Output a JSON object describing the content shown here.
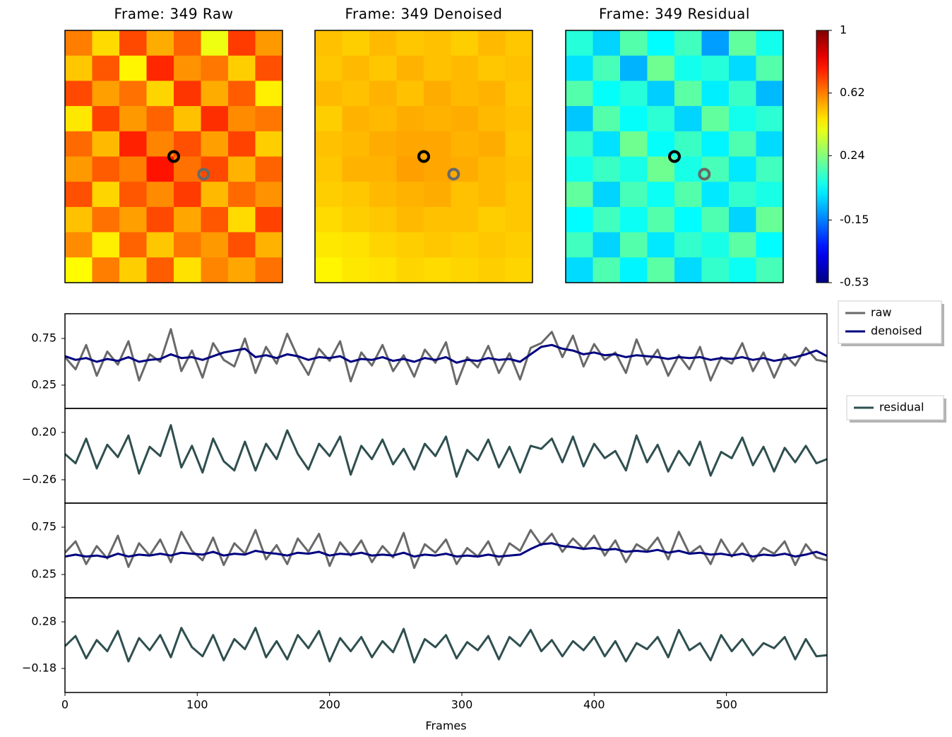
{
  "chart_data": [
    {
      "type": "heatmap",
      "title": "Frame: 349 Raw",
      "cmap": "jet",
      "zlim": [
        -0.53,
        1
      ],
      "z": [
        [
          0.62,
          0.48,
          0.7,
          0.55,
          0.66,
          0.4,
          0.72,
          0.58
        ],
        [
          0.51,
          0.68,
          0.44,
          0.75,
          0.59,
          0.63,
          0.5,
          0.69
        ],
        [
          0.7,
          0.57,
          0.64,
          0.49,
          0.73,
          0.55,
          0.67,
          0.45
        ],
        [
          0.46,
          0.71,
          0.58,
          0.66,
          0.52,
          0.74,
          0.6,
          0.63
        ],
        [
          0.65,
          0.53,
          0.76,
          0.61,
          0.69,
          0.57,
          0.71,
          0.5
        ],
        [
          0.58,
          0.67,
          0.62,
          0.78,
          0.64,
          0.7,
          0.54,
          0.66
        ],
        [
          0.69,
          0.49,
          0.68,
          0.6,
          0.72,
          0.53,
          0.65,
          0.59
        ],
        [
          0.52,
          0.64,
          0.57,
          0.7,
          0.56,
          0.68,
          0.48,
          0.71
        ],
        [
          0.6,
          0.45,
          0.66,
          0.51,
          0.63,
          0.58,
          0.69,
          0.54
        ],
        [
          0.43,
          0.62,
          0.5,
          0.67,
          0.47,
          0.61,
          0.56,
          0.64
        ]
      ],
      "markers": [
        {
          "x": 4.0,
          "y": 5.0,
          "color": "#000000"
        },
        {
          "x": 5.1,
          "y": 5.7,
          "color": "#696969"
        }
      ]
    },
    {
      "type": "heatmap",
      "title": "Frame: 349 Denoised",
      "cmap": "jet",
      "zlim": [
        -0.53,
        1
      ],
      "z": [
        [
          0.52,
          0.5,
          0.53,
          0.51,
          0.52,
          0.5,
          0.53,
          0.51
        ],
        [
          0.51,
          0.53,
          0.51,
          0.54,
          0.52,
          0.53,
          0.51,
          0.52
        ],
        [
          0.53,
          0.52,
          0.54,
          0.52,
          0.55,
          0.53,
          0.54,
          0.51
        ],
        [
          0.5,
          0.54,
          0.53,
          0.55,
          0.54,
          0.55,
          0.53,
          0.52
        ],
        [
          0.52,
          0.53,
          0.55,
          0.56,
          0.56,
          0.54,
          0.55,
          0.51
        ],
        [
          0.51,
          0.54,
          0.54,
          0.57,
          0.56,
          0.55,
          0.53,
          0.52
        ],
        [
          0.5,
          0.51,
          0.53,
          0.54,
          0.55,
          0.52,
          0.53,
          0.51
        ],
        [
          0.48,
          0.5,
          0.51,
          0.53,
          0.52,
          0.52,
          0.5,
          0.51
        ],
        [
          0.46,
          0.47,
          0.49,
          0.5,
          0.51,
          0.5,
          0.51,
          0.5
        ],
        [
          0.44,
          0.46,
          0.47,
          0.49,
          0.48,
          0.49,
          0.5,
          0.49
        ]
      ],
      "markers": [
        {
          "x": 4.0,
          "y": 5.0,
          "color": "#000000"
        },
        {
          "x": 5.1,
          "y": 5.7,
          "color": "#696969"
        }
      ]
    },
    {
      "type": "heatmap",
      "title": "Frame: 349 Residual",
      "cmap": "jet",
      "zlim": [
        -0.53,
        1
      ],
      "z": [
        [
          0.1,
          -0.02,
          0.17,
          0.04,
          0.14,
          -0.1,
          0.19,
          0.07
        ],
        [
          0.0,
          0.15,
          -0.07,
          0.21,
          0.07,
          0.1,
          -0.01,
          0.17
        ],
        [
          0.17,
          0.05,
          0.1,
          -0.03,
          0.18,
          0.02,
          0.13,
          -0.06
        ],
        [
          -0.04,
          0.17,
          0.05,
          0.11,
          -0.02,
          0.19,
          0.07,
          0.11
        ],
        [
          0.13,
          0.0,
          0.21,
          0.05,
          0.13,
          0.03,
          0.16,
          -0.01
        ],
        [
          0.07,
          0.13,
          0.08,
          0.21,
          0.08,
          0.15,
          0.01,
          0.14
        ],
        [
          0.19,
          -0.02,
          0.15,
          0.06,
          0.17,
          0.01,
          0.12,
          0.08
        ],
        [
          0.04,
          0.14,
          0.06,
          0.17,
          0.04,
          0.16,
          -0.02,
          0.2
        ],
        [
          0.14,
          -0.02,
          0.17,
          0.01,
          0.12,
          0.08,
          0.18,
          0.04
        ],
        [
          -0.01,
          0.16,
          0.03,
          0.18,
          -0.01,
          0.12,
          0.06,
          0.15
        ]
      ],
      "markers": [
        {
          "x": 4.0,
          "y": 5.0,
          "color": "#000000"
        },
        {
          "x": 5.1,
          "y": 5.7,
          "color": "#696969"
        }
      ]
    },
    {
      "type": "colorbar",
      "cmap": "jet",
      "zlim": [
        -0.53,
        1
      ],
      "ticks": [
        1,
        0.62,
        0.24,
        -0.15,
        -0.53
      ]
    },
    {
      "type": "line",
      "xlim": [
        0,
        576
      ],
      "ylim": [
        0,
        1.015
      ],
      "yticks": [
        0.25,
        0.75
      ],
      "legend": "right",
      "x": [
        0,
        8,
        16,
        24,
        32,
        40,
        48,
        56,
        64,
        72,
        80,
        88,
        96,
        104,
        112,
        120,
        128,
        136,
        144,
        152,
        160,
        168,
        176,
        184,
        192,
        200,
        208,
        216,
        224,
        232,
        240,
        248,
        256,
        264,
        272,
        280,
        288,
        296,
        304,
        312,
        320,
        328,
        336,
        344,
        352,
        360,
        368,
        376,
        384,
        392,
        400,
        408,
        416,
        424,
        432,
        440,
        448,
        456,
        464,
        472,
        480,
        488,
        496,
        504,
        512,
        520,
        528,
        536,
        544,
        552,
        560,
        568,
        576
      ],
      "series": [
        {
          "name": "raw",
          "color": "#696969",
          "values": [
            0.55,
            0.42,
            0.68,
            0.35,
            0.61,
            0.47,
            0.72,
            0.3,
            0.58,
            0.5,
            0.85,
            0.4,
            0.62,
            0.33,
            0.7,
            0.52,
            0.45,
            0.75,
            0.38,
            0.66,
            0.48,
            0.8,
            0.55,
            0.36,
            0.64,
            0.51,
            0.72,
            0.29,
            0.6,
            0.46,
            0.68,
            0.4,
            0.57,
            0.34,
            0.63,
            0.49,
            0.71,
            0.26,
            0.55,
            0.44,
            0.67,
            0.38,
            0.59,
            0.31,
            0.65,
            0.7,
            0.82,
            0.55,
            0.78,
            0.45,
            0.69,
            0.52,
            0.6,
            0.38,
            0.74,
            0.47,
            0.63,
            0.35,
            0.57,
            0.42,
            0.66,
            0.3,
            0.55,
            0.48,
            0.7,
            0.4,
            0.6,
            0.33,
            0.58,
            0.46,
            0.65,
            0.52,
            0.5
          ]
        },
        {
          "name": "denoised",
          "color": "#000080",
          "values": [
            0.56,
            0.52,
            0.54,
            0.5,
            0.53,
            0.51,
            0.55,
            0.5,
            0.52,
            0.53,
            0.58,
            0.54,
            0.55,
            0.52,
            0.56,
            0.6,
            0.62,
            0.64,
            0.55,
            0.57,
            0.54,
            0.58,
            0.56,
            0.52,
            0.55,
            0.54,
            0.56,
            0.5,
            0.53,
            0.52,
            0.55,
            0.51,
            0.53,
            0.5,
            0.54,
            0.52,
            0.55,
            0.49,
            0.52,
            0.51,
            0.54,
            0.52,
            0.53,
            0.5,
            0.58,
            0.66,
            0.68,
            0.64,
            0.62,
            0.58,
            0.6,
            0.57,
            0.58,
            0.55,
            0.57,
            0.56,
            0.55,
            0.53,
            0.55,
            0.54,
            0.55,
            0.52,
            0.54,
            0.53,
            0.55,
            0.52,
            0.54,
            0.51,
            0.53,
            0.55,
            0.58,
            0.62,
            0.56
          ]
        }
      ]
    },
    {
      "type": "line",
      "xlim": [
        0,
        576
      ],
      "ylim": [
        -0.487,
        0.433
      ],
      "yticks": [
        {
          "value": 0.2,
          "label": "0.20"
        },
        {
          "value": -0.26,
          "label": "−0.26"
        }
      ],
      "legend": "right",
      "x": [
        0,
        8,
        16,
        24,
        32,
        40,
        48,
        56,
        64,
        72,
        80,
        88,
        96,
        104,
        112,
        120,
        128,
        136,
        144,
        152,
        160,
        168,
        176,
        184,
        192,
        200,
        208,
        216,
        224,
        232,
        240,
        248,
        256,
        264,
        272,
        280,
        288,
        296,
        304,
        312,
        320,
        328,
        336,
        344,
        352,
        360,
        368,
        376,
        384,
        392,
        400,
        408,
        416,
        424,
        432,
        440,
        448,
        456,
        464,
        472,
        480,
        488,
        496,
        504,
        512,
        520,
        528,
        536,
        544,
        552,
        560,
        568,
        576
      ],
      "series": [
        {
          "name": "residual",
          "color": "#2f4f4f",
          "values": [
            -0.01,
            -0.1,
            0.14,
            -0.15,
            0.08,
            -0.04,
            0.17,
            -0.2,
            0.06,
            -0.03,
            0.27,
            -0.14,
            0.07,
            -0.19,
            0.14,
            -0.08,
            -0.17,
            0.11,
            -0.17,
            0.09,
            -0.06,
            0.22,
            -0.01,
            -0.16,
            0.09,
            -0.03,
            0.16,
            -0.21,
            0.07,
            -0.06,
            0.13,
            -0.11,
            0.04,
            -0.16,
            0.09,
            -0.03,
            0.16,
            -0.23,
            0.03,
            -0.07,
            0.13,
            -0.14,
            0.06,
            -0.19,
            0.07,
            0.04,
            0.14,
            -0.09,
            0.16,
            -0.13,
            0.09,
            -0.05,
            0.02,
            -0.17,
            0.17,
            -0.09,
            0.08,
            -0.18,
            0.02,
            -0.12,
            0.11,
            -0.22,
            0.01,
            -0.05,
            0.15,
            -0.12,
            0.06,
            -0.18,
            0.05,
            -0.09,
            0.07,
            -0.1,
            -0.06
          ]
        }
      ]
    },
    {
      "type": "line",
      "xlim": [
        0,
        576
      ],
      "ylim": [
        0.004,
        1.004
      ],
      "yticks": [
        0.25,
        0.75
      ],
      "x": [
        0,
        8,
        16,
        24,
        32,
        40,
        48,
        56,
        64,
        72,
        80,
        88,
        96,
        104,
        112,
        120,
        128,
        136,
        144,
        152,
        160,
        168,
        176,
        184,
        192,
        200,
        208,
        216,
        224,
        232,
        240,
        248,
        256,
        264,
        272,
        280,
        288,
        296,
        304,
        312,
        320,
        328,
        336,
        344,
        352,
        360,
        368,
        376,
        384,
        392,
        400,
        408,
        416,
        424,
        432,
        440,
        448,
        456,
        464,
        472,
        480,
        488,
        496,
        504,
        512,
        520,
        528,
        536,
        544,
        552,
        560,
        568,
        576
      ],
      "series": [
        {
          "color": "#696969",
          "values": [
            0.48,
            0.6,
            0.36,
            0.55,
            0.42,
            0.66,
            0.33,
            0.58,
            0.45,
            0.62,
            0.38,
            0.7,
            0.5,
            0.4,
            0.64,
            0.35,
            0.58,
            0.47,
            0.72,
            0.41,
            0.56,
            0.36,
            0.63,
            0.49,
            0.68,
            0.34,
            0.59,
            0.45,
            0.61,
            0.38,
            0.55,
            0.43,
            0.69,
            0.32,
            0.57,
            0.48,
            0.62,
            0.36,
            0.53,
            0.44,
            0.6,
            0.35,
            0.58,
            0.5,
            0.72,
            0.56,
            0.68,
            0.49,
            0.63,
            0.52,
            0.66,
            0.45,
            0.61,
            0.38,
            0.57,
            0.5,
            0.64,
            0.41,
            0.7,
            0.47,
            0.55,
            0.36,
            0.62,
            0.44,
            0.58,
            0.39,
            0.53,
            0.47,
            0.6,
            0.35,
            0.57,
            0.43,
            0.4
          ]
        },
        {
          "color": "#000080",
          "values": [
            0.44,
            0.46,
            0.44,
            0.45,
            0.43,
            0.47,
            0.44,
            0.46,
            0.45,
            0.47,
            0.45,
            0.48,
            0.47,
            0.46,
            0.49,
            0.45,
            0.47,
            0.46,
            0.5,
            0.48,
            0.47,
            0.45,
            0.48,
            0.47,
            0.49,
            0.45,
            0.47,
            0.46,
            0.48,
            0.45,
            0.46,
            0.45,
            0.48,
            0.44,
            0.46,
            0.45,
            0.47,
            0.44,
            0.45,
            0.44,
            0.46,
            0.44,
            0.45,
            0.46,
            0.52,
            0.57,
            0.58,
            0.55,
            0.54,
            0.52,
            0.53,
            0.51,
            0.52,
            0.49,
            0.5,
            0.49,
            0.51,
            0.48,
            0.5,
            0.47,
            0.48,
            0.46,
            0.47,
            0.45,
            0.47,
            0.44,
            0.46,
            0.45,
            0.47,
            0.44,
            0.46,
            0.49,
            0.45
          ]
        }
      ]
    },
    {
      "type": "line",
      "xlim": [
        0,
        576
      ],
      "ylim": [
        -0.417,
        0.517
      ],
      "yticks": [
        0.28,
        {
          "value": -0.18,
          "label": "−0.18"
        }
      ],
      "xticks": [
        0,
        100,
        200,
        300,
        400,
        500
      ],
      "xlabel": "Frames",
      "x": [
        0,
        8,
        16,
        24,
        32,
        40,
        48,
        56,
        64,
        72,
        80,
        88,
        96,
        104,
        112,
        120,
        128,
        136,
        144,
        152,
        160,
        168,
        176,
        184,
        192,
        200,
        208,
        216,
        224,
        232,
        240,
        248,
        256,
        264,
        272,
        280,
        288,
        296,
        304,
        312,
        320,
        328,
        336,
        344,
        352,
        360,
        368,
        376,
        384,
        392,
        400,
        408,
        416,
        424,
        432,
        440,
        448,
        456,
        464,
        472,
        480,
        488,
        496,
        504,
        512,
        520,
        528,
        536,
        544,
        552,
        560,
        568,
        576
      ],
      "series": [
        {
          "color": "#2f4f4f",
          "values": [
            0.04,
            0.14,
            -0.08,
            0.1,
            -0.01,
            0.19,
            -0.11,
            0.12,
            0.0,
            0.15,
            -0.07,
            0.22,
            0.03,
            -0.06,
            0.15,
            -0.1,
            0.11,
            0.01,
            0.22,
            -0.07,
            0.09,
            -0.09,
            0.15,
            0.02,
            0.19,
            -0.11,
            0.12,
            -0.01,
            0.13,
            -0.07,
            0.09,
            -0.02,
            0.21,
            -0.12,
            0.11,
            0.03,
            0.15,
            -0.08,
            0.08,
            0.0,
            0.14,
            -0.09,
            0.13,
            0.04,
            0.2,
            -0.01,
            0.1,
            -0.06,
            0.09,
            0.0,
            0.13,
            -0.06,
            0.09,
            -0.11,
            0.07,
            0.01,
            0.13,
            -0.07,
            0.2,
            0.0,
            0.07,
            -0.1,
            0.15,
            -0.01,
            0.11,
            -0.05,
            0.07,
            0.02,
            0.13,
            -0.09,
            0.11,
            -0.06,
            -0.05
          ]
        }
      ]
    }
  ]
}
